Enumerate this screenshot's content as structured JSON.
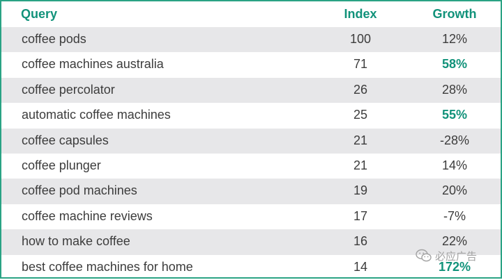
{
  "table": {
    "headers": {
      "query": "Query",
      "index": "Index",
      "growth": "Growth"
    },
    "rows": [
      {
        "query": "coffee pods",
        "index": "100",
        "growth": "12%",
        "highlight": false
      },
      {
        "query": "coffee machines australia",
        "index": "71",
        "growth": "58%",
        "highlight": true
      },
      {
        "query": "coffee percolator",
        "index": "26",
        "growth": "28%",
        "highlight": false
      },
      {
        "query": "automatic coffee machines",
        "index": "25",
        "growth": "55%",
        "highlight": true
      },
      {
        "query": "coffee capsules",
        "index": "21",
        "growth": "-28%",
        "highlight": false
      },
      {
        "query": "coffee plunger",
        "index": "21",
        "growth": "14%",
        "highlight": false
      },
      {
        "query": "coffee pod machines",
        "index": "19",
        "growth": "20%",
        "highlight": false
      },
      {
        "query": "coffee machine reviews",
        "index": "17",
        "growth": "-7%",
        "highlight": false
      },
      {
        "query": "how to make coffee",
        "index": "16",
        "growth": "22%",
        "highlight": false
      },
      {
        "query": "best coffee machines for home",
        "index": "14",
        "growth": "172%",
        "highlight": true
      }
    ]
  },
  "watermark": {
    "text": "必应广告",
    "icon": "wechat-icon"
  },
  "colors": {
    "accent": "#11927a",
    "border": "#2aa384",
    "row_shade": "#e7e7e9",
    "text": "#3c3c3c"
  }
}
